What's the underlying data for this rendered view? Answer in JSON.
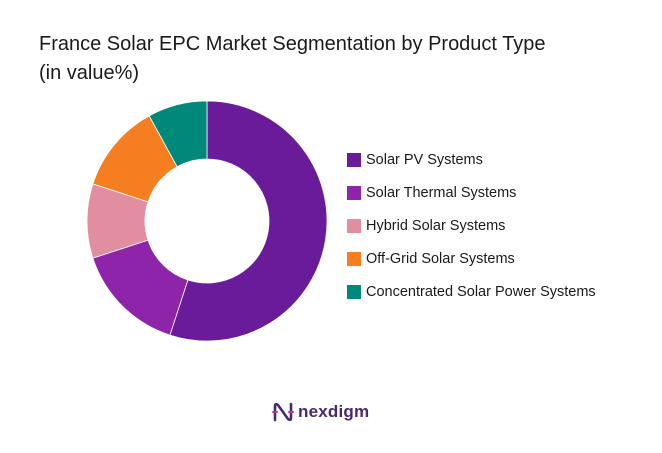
{
  "chart_data": {
    "type": "pie",
    "title_lines": [
      "France Solar EPC Market Segmentation by Product Type",
      "(in value%)"
    ],
    "categories": [
      "Solar PV Systems",
      "Solar Thermal Systems",
      "Hybrid  Solar Systems",
      "Off-Grid Solar Systems",
      "Concentrated Solar Power Systems"
    ],
    "values": [
      55,
      15,
      10,
      12,
      8
    ],
    "colors": [
      "#6a1b9a",
      "#8e24aa",
      "#e08ea0",
      "#f57f20",
      "#00897b"
    ],
    "legend_position": "right",
    "hole": "donut"
  },
  "brand": {
    "name": "nexdigm",
    "icon": "nexdigm-logo-icon",
    "color": "#4a2970"
  }
}
